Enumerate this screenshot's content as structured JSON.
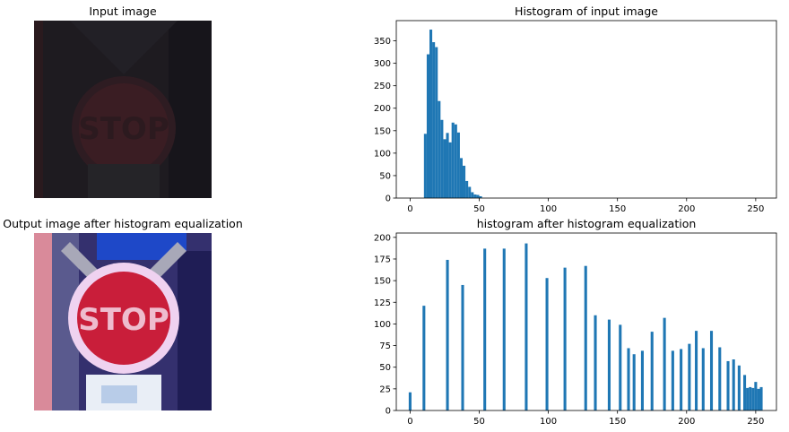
{
  "panels": {
    "input_title": "Input image",
    "output_title": "Output image after histogram equalization"
  },
  "colors": {
    "bar": "#1f77b4",
    "input_image_base": "#1f1c21",
    "input_image_sign": "#3a1d22",
    "output_image_bg": "#2b2a6a",
    "output_image_sign": "#c91e3a"
  },
  "chart_data": [
    {
      "type": "bar",
      "title": "Histogram of input image",
      "xlabel": "",
      "ylabel": "",
      "xlim": [
        -10,
        265
      ],
      "ylim": [
        0,
        395
      ],
      "xticks": [
        0,
        50,
        100,
        150,
        200,
        250
      ],
      "yticks": [
        0,
        50,
        100,
        150,
        200,
        250,
        300,
        350
      ],
      "bar_width": 2,
      "x": [
        11,
        13,
        15,
        17,
        19,
        21,
        23,
        25,
        27,
        29,
        31,
        33,
        35,
        37,
        39,
        41,
        43,
        45,
        47,
        49,
        51
      ],
      "values": [
        143,
        320,
        375,
        347,
        336,
        216,
        174,
        131,
        145,
        124,
        168,
        164,
        146,
        89,
        72,
        38,
        25,
        13,
        8,
        7,
        4
      ]
    },
    {
      "type": "bar",
      "title": "histogram after histogram equalization",
      "xlabel": "",
      "ylabel": "",
      "xlim": [
        -10,
        265
      ],
      "ylim": [
        0,
        205
      ],
      "xticks": [
        0,
        50,
        100,
        150,
        200,
        250
      ],
      "yticks": [
        0,
        25,
        50,
        75,
        100,
        125,
        150,
        175,
        200
      ],
      "bar_width": 2,
      "x": [
        0,
        10,
        27,
        38,
        54,
        68,
        84,
        99,
        112,
        127,
        134,
        144,
        152,
        158,
        162,
        168,
        175,
        184,
        190,
        196,
        202,
        207,
        212,
        218,
        224,
        230,
        234,
        238,
        242,
        244,
        246,
        248,
        250,
        252,
        254
      ],
      "values": [
        21,
        121,
        174,
        145,
        187,
        187,
        193,
        153,
        165,
        167,
        110,
        105,
        99,
        72,
        65,
        69,
        91,
        107,
        69,
        71,
        77,
        92,
        72,
        92,
        73,
        57,
        59,
        52,
        41,
        26,
        27,
        26,
        33,
        25,
        27
      ]
    }
  ]
}
